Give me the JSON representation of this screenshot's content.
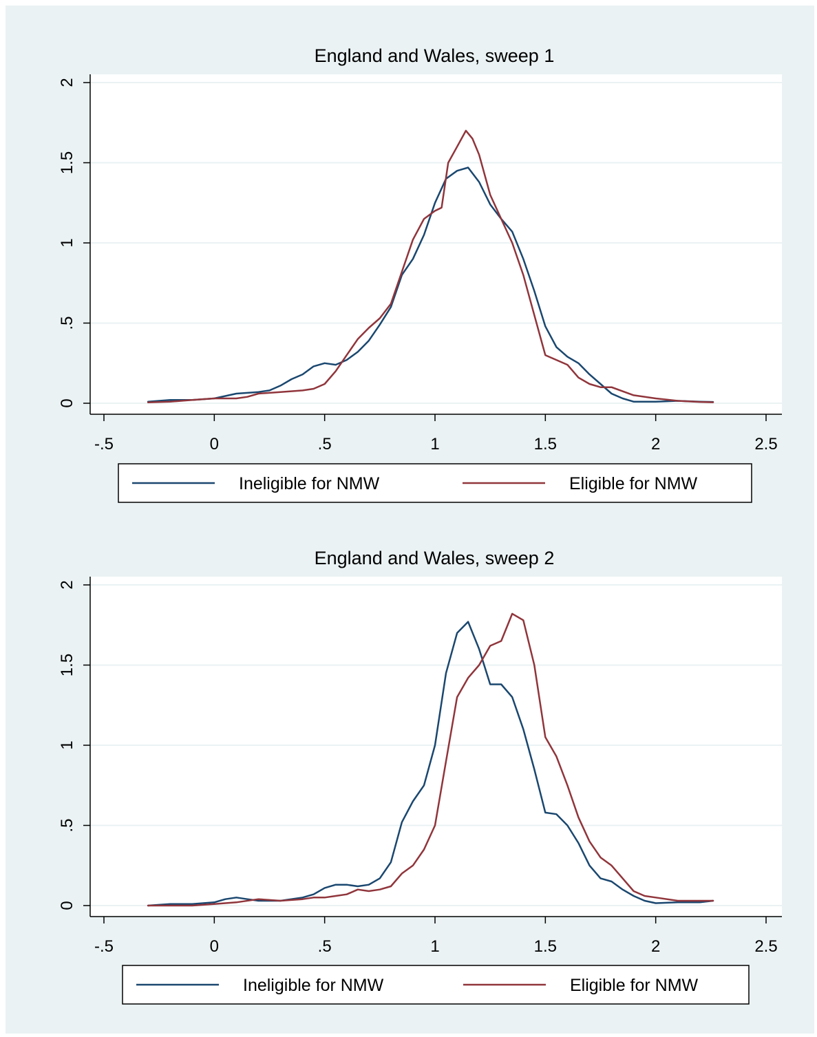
{
  "chart_data": [
    {
      "type": "line",
      "title": "England and Wales, sweep 1",
      "xlabel": "",
      "ylabel": "",
      "xlim": [
        -0.5,
        2.5
      ],
      "ylim": [
        0,
        2
      ],
      "x_ticks": [
        "-.5",
        "0",
        ".5",
        "1",
        "1.5",
        "2",
        "2.5"
      ],
      "y_ticks": [
        "0",
        ".5",
        "1",
        "1.5",
        "2"
      ],
      "grid": true,
      "legend_position": "bottom",
      "series": [
        {
          "name": "Ineligible for NMW",
          "color": "#1a476f",
          "points": [
            [
              -0.3,
              0.01
            ],
            [
              -0.2,
              0.02
            ],
            [
              -0.1,
              0.02
            ],
            [
              0.0,
              0.03
            ],
            [
              0.1,
              0.06
            ],
            [
              0.2,
              0.07
            ],
            [
              0.25,
              0.08
            ],
            [
              0.3,
              0.11
            ],
            [
              0.35,
              0.15
            ],
            [
              0.4,
              0.18
            ],
            [
              0.45,
              0.23
            ],
            [
              0.5,
              0.25
            ],
            [
              0.55,
              0.24
            ],
            [
              0.6,
              0.27
            ],
            [
              0.65,
              0.32
            ],
            [
              0.7,
              0.39
            ],
            [
              0.75,
              0.49
            ],
            [
              0.8,
              0.6
            ],
            [
              0.85,
              0.8
            ],
            [
              0.9,
              0.9
            ],
            [
              0.95,
              1.05
            ],
            [
              1.0,
              1.25
            ],
            [
              1.05,
              1.4
            ],
            [
              1.1,
              1.45
            ],
            [
              1.15,
              1.47
            ],
            [
              1.2,
              1.38
            ],
            [
              1.25,
              1.24
            ],
            [
              1.3,
              1.15
            ],
            [
              1.35,
              1.07
            ],
            [
              1.4,
              0.9
            ],
            [
              1.45,
              0.7
            ],
            [
              1.5,
              0.48
            ],
            [
              1.55,
              0.35
            ],
            [
              1.6,
              0.29
            ],
            [
              1.65,
              0.25
            ],
            [
              1.7,
              0.18
            ],
            [
              1.75,
              0.12
            ],
            [
              1.8,
              0.06
            ],
            [
              1.85,
              0.03
            ],
            [
              1.9,
              0.01
            ],
            [
              2.0,
              0.01
            ],
            [
              2.1,
              0.015
            ],
            [
              2.2,
              0.01
            ],
            [
              2.26,
              0.008
            ]
          ]
        },
        {
          "name": "Eligible for NMW",
          "color": "#90353b",
          "points": [
            [
              -0.3,
              0.005
            ],
            [
              -0.2,
              0.01
            ],
            [
              -0.1,
              0.02
            ],
            [
              0.0,
              0.03
            ],
            [
              0.1,
              0.03
            ],
            [
              0.15,
              0.04
            ],
            [
              0.2,
              0.06
            ],
            [
              0.3,
              0.07
            ],
            [
              0.4,
              0.08
            ],
            [
              0.45,
              0.09
            ],
            [
              0.5,
              0.12
            ],
            [
              0.55,
              0.2
            ],
            [
              0.6,
              0.3
            ],
            [
              0.65,
              0.4
            ],
            [
              0.7,
              0.47
            ],
            [
              0.75,
              0.53
            ],
            [
              0.8,
              0.62
            ],
            [
              0.85,
              0.82
            ],
            [
              0.9,
              1.02
            ],
            [
              0.95,
              1.15
            ],
            [
              1.0,
              1.2
            ],
            [
              1.03,
              1.22
            ],
            [
              1.06,
              1.5
            ],
            [
              1.1,
              1.6
            ],
            [
              1.14,
              1.7
            ],
            [
              1.17,
              1.65
            ],
            [
              1.2,
              1.55
            ],
            [
              1.25,
              1.3
            ],
            [
              1.3,
              1.15
            ],
            [
              1.35,
              1.0
            ],
            [
              1.4,
              0.8
            ],
            [
              1.45,
              0.55
            ],
            [
              1.5,
              0.3
            ],
            [
              1.55,
              0.27
            ],
            [
              1.6,
              0.24
            ],
            [
              1.65,
              0.16
            ],
            [
              1.7,
              0.12
            ],
            [
              1.75,
              0.1
            ],
            [
              1.8,
              0.1
            ],
            [
              1.9,
              0.05
            ],
            [
              2.0,
              0.03
            ],
            [
              2.1,
              0.015
            ],
            [
              2.2,
              0.008
            ],
            [
              2.26,
              0.006
            ]
          ]
        }
      ]
    },
    {
      "type": "line",
      "title": "England and Wales, sweep 2",
      "xlabel": "",
      "ylabel": "",
      "xlim": [
        -0.5,
        2.5
      ],
      "ylim": [
        0,
        2
      ],
      "x_ticks": [
        "-.5",
        "0",
        ".5",
        "1",
        "1.5",
        "2",
        "2.5"
      ],
      "y_ticks": [
        "0",
        ".5",
        "1",
        "1.5",
        "2"
      ],
      "grid": true,
      "legend_position": "bottom",
      "series": [
        {
          "name": "Ineligible for NMW",
          "color": "#1a476f",
          "points": [
            [
              -0.3,
              0.0
            ],
            [
              -0.2,
              0.01
            ],
            [
              -0.1,
              0.01
            ],
            [
              0.0,
              0.02
            ],
            [
              0.05,
              0.04
            ],
            [
              0.1,
              0.05
            ],
            [
              0.15,
              0.04
            ],
            [
              0.2,
              0.03
            ],
            [
              0.3,
              0.03
            ],
            [
              0.4,
              0.05
            ],
            [
              0.45,
              0.07
            ],
            [
              0.5,
              0.11
            ],
            [
              0.55,
              0.13
            ],
            [
              0.6,
              0.13
            ],
            [
              0.65,
              0.12
            ],
            [
              0.7,
              0.13
            ],
            [
              0.75,
              0.17
            ],
            [
              0.8,
              0.27
            ],
            [
              0.85,
              0.52
            ],
            [
              0.9,
              0.65
            ],
            [
              0.95,
              0.75
            ],
            [
              1.0,
              1.0
            ],
            [
              1.05,
              1.45
            ],
            [
              1.1,
              1.7
            ],
            [
              1.15,
              1.77
            ],
            [
              1.2,
              1.6
            ],
            [
              1.25,
              1.38
            ],
            [
              1.3,
              1.38
            ],
            [
              1.35,
              1.3
            ],
            [
              1.4,
              1.1
            ],
            [
              1.45,
              0.85
            ],
            [
              1.5,
              0.58
            ],
            [
              1.55,
              0.57
            ],
            [
              1.6,
              0.5
            ],
            [
              1.65,
              0.39
            ],
            [
              1.7,
              0.25
            ],
            [
              1.75,
              0.17
            ],
            [
              1.8,
              0.15
            ],
            [
              1.85,
              0.1
            ],
            [
              1.9,
              0.06
            ],
            [
              1.95,
              0.03
            ],
            [
              2.0,
              0.015
            ],
            [
              2.1,
              0.02
            ],
            [
              2.2,
              0.02
            ],
            [
              2.26,
              0.03
            ]
          ]
        },
        {
          "name": "Eligible for NMW",
          "color": "#90353b",
          "points": [
            [
              -0.3,
              0.0
            ],
            [
              -0.2,
              0.0
            ],
            [
              -0.1,
              0.0
            ],
            [
              0.0,
              0.01
            ],
            [
              0.1,
              0.02
            ],
            [
              0.2,
              0.04
            ],
            [
              0.3,
              0.03
            ],
            [
              0.4,
              0.04
            ],
            [
              0.45,
              0.05
            ],
            [
              0.5,
              0.05
            ],
            [
              0.55,
              0.06
            ],
            [
              0.6,
              0.07
            ],
            [
              0.65,
              0.1
            ],
            [
              0.7,
              0.09
            ],
            [
              0.75,
              0.1
            ],
            [
              0.8,
              0.12
            ],
            [
              0.85,
              0.2
            ],
            [
              0.9,
              0.25
            ],
            [
              0.95,
              0.35
            ],
            [
              1.0,
              0.5
            ],
            [
              1.05,
              0.9
            ],
            [
              1.1,
              1.3
            ],
            [
              1.15,
              1.42
            ],
            [
              1.2,
              1.5
            ],
            [
              1.25,
              1.62
            ],
            [
              1.3,
              1.65
            ],
            [
              1.35,
              1.82
            ],
            [
              1.4,
              1.78
            ],
            [
              1.45,
              1.5
            ],
            [
              1.5,
              1.05
            ],
            [
              1.55,
              0.93
            ],
            [
              1.6,
              0.75
            ],
            [
              1.65,
              0.55
            ],
            [
              1.7,
              0.4
            ],
            [
              1.75,
              0.3
            ],
            [
              1.8,
              0.25
            ],
            [
              1.85,
              0.17
            ],
            [
              1.9,
              0.09
            ],
            [
              1.95,
              0.06
            ],
            [
              2.0,
              0.05
            ],
            [
              2.1,
              0.03
            ],
            [
              2.2,
              0.03
            ],
            [
              2.26,
              0.03
            ]
          ]
        }
      ]
    }
  ]
}
